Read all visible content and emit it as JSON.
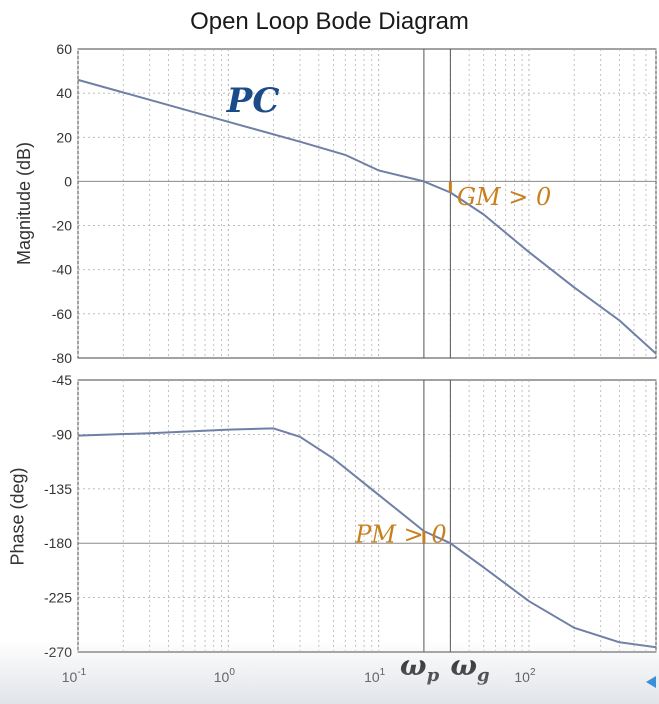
{
  "chart_data": [
    {
      "type": "line",
      "panel": "magnitude",
      "title": "Open Loop Bode Diagram",
      "ylabel": "Magnitude (dB)",
      "xscale": "log",
      "xlim": [
        0.1,
        700
      ],
      "ylim": [
        -80,
        60
      ],
      "yticks": [
        "60",
        "40",
        "20",
        "0",
        "-20",
        "-40",
        "-60",
        "-80"
      ],
      "grid": true,
      "series": [
        {
          "x": [
            0.1,
            0.3,
            1,
            3,
            6,
            10,
            20,
            30,
            50,
            100,
            200,
            400,
            700
          ],
          "y": [
            46,
            37,
            27,
            18,
            12,
            5,
            0,
            -5,
            -15,
            -32,
            -48,
            -63,
            -78
          ]
        }
      ],
      "annotations": [
        {
          "text": "PC",
          "x": 1.5,
          "y": 37
        },
        {
          "text": "GM > 0",
          "x": 45,
          "y": -7
        }
      ],
      "vlines": [
        20,
        30
      ],
      "margin_marker": {
        "x": 30,
        "y0": 0,
        "y1": -5
      }
    },
    {
      "type": "line",
      "panel": "phase",
      "ylabel": "Phase (deg)",
      "xscale": "log",
      "xlim": [
        0.1,
        700
      ],
      "ylim": [
        -270,
        -45
      ],
      "yticks": [
        "-45",
        "-90",
        "-135",
        "-180",
        "-225",
        "-270"
      ],
      "xticks": [
        {
          "value": 0.1,
          "base": "10",
          "exp": "-1"
        },
        {
          "value": 1,
          "base": "10",
          "exp": "0"
        },
        {
          "value": 10,
          "base": "10",
          "exp": "1"
        },
        {
          "value": 100,
          "base": "10",
          "exp": "2"
        }
      ],
      "grid": true,
      "series": [
        {
          "x": [
            0.1,
            0.3,
            1,
            2,
            3,
            5,
            10,
            20,
            30,
            50,
            100,
            200,
            400,
            700
          ],
          "y": [
            -91,
            -89,
            -86,
            -85,
            -92,
            -110,
            -140,
            -170,
            -180,
            -200,
            -228,
            -250,
            -262,
            -266
          ]
        }
      ],
      "annotations": [
        {
          "text": "PM > 0",
          "x": 6,
          "y": -176
        }
      ],
      "vlines": [
        20,
        30
      ],
      "margin_marker": {
        "x": 20,
        "y0": -170,
        "y1": -180
      },
      "x_symbols": [
        {
          "main": "ω",
          "sub": "p",
          "x": 20
        },
        {
          "main": "ω",
          "sub": "g",
          "x": 30
        }
      ]
    }
  ],
  "colors": {
    "curve": "#6f7fa6",
    "annotation": "#c8801e",
    "pc_label": "#1c4b8a",
    "grid": "#b3b3b3",
    "axis_text": "#333333"
  }
}
